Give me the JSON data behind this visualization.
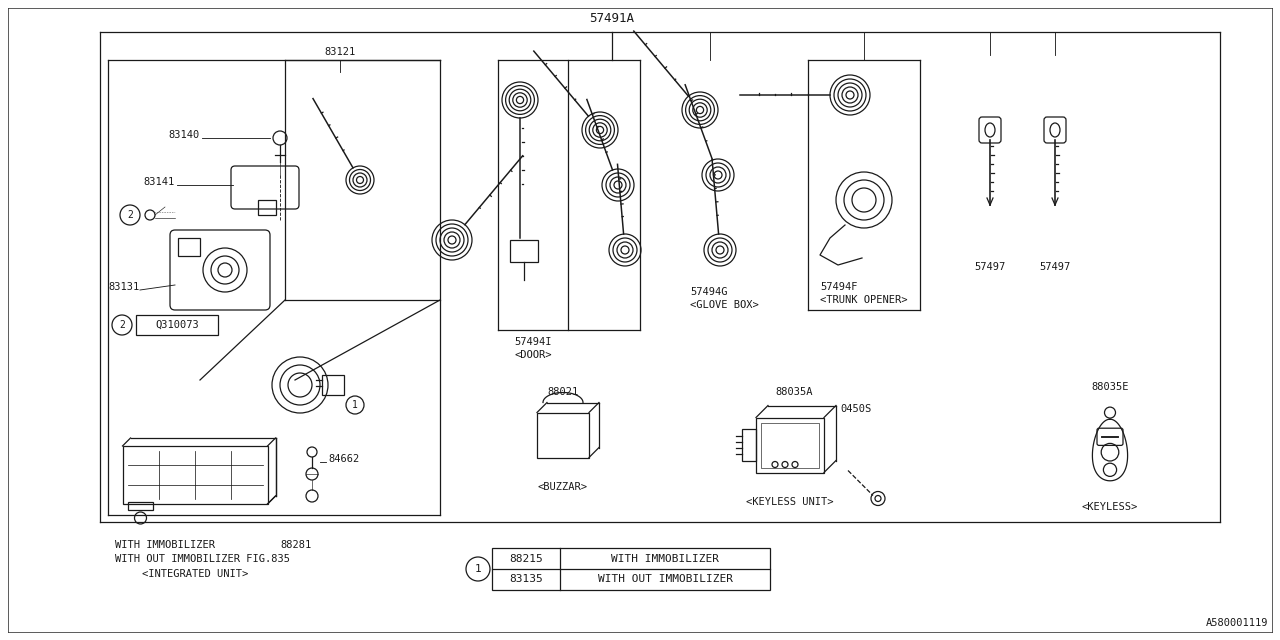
{
  "bg_color": "#ffffff",
  "line_color": "#1a1a1a",
  "title_top": "57491A",
  "bottom_right_code": "A580001119",
  "labels": {
    "part_83140": "83140",
    "part_83141": "83141",
    "part_83131": "83131",
    "part_Q310073": "Q310073",
    "part_84662": "84662",
    "part_83121": "83121",
    "part_88021": "88021",
    "part_88035A": "88035A",
    "part_0450S": "0450S",
    "part_88035E": "88035E",
    "part_57494I": "57494I",
    "part_57494G": "57494G",
    "part_57494F": "57494F",
    "part_57497_1": "57497",
    "part_57497_2": "57497",
    "part_88281": "88281",
    "door": "<DOOR>",
    "glove_box": "<GLOVE BOX>",
    "trunk_opener": "<TRUNK OPENER>",
    "buzzar": "<BUZZAR>",
    "keyless_unit": "<KEYLESS UNIT>",
    "keyless": "<KEYLESS>",
    "integrated_unit": "<INTEGRATED UNIT>",
    "with_immobilizer_label": "WITH IMMOBILIZER",
    "without_immobilizer_label": "WITH OUT IMMOBILIZER FIG.835",
    "table_row1_num": "88215",
    "table_row1_text": "WITH IMMOBILIZER",
    "table_row2_num": "83135",
    "table_row2_text": "WITH OUT IMMOBILIZER"
  }
}
